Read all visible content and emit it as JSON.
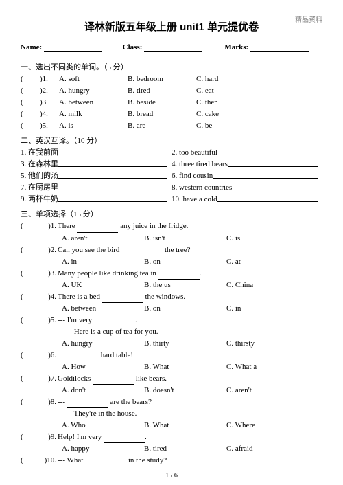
{
  "watermark": "精品资料",
  "title": "译林新版五年级上册 unit1 单元提优卷",
  "header": {
    "name": "Name:",
    "class": "Class:",
    "marks": "Marks:"
  },
  "sec1": {
    "title": "一、选出不同类的单词。（5 分）",
    "items": [
      {
        "n": ")1.",
        "a": "A. soft",
        "b": "B. bedroom",
        "c": "C. hard"
      },
      {
        "n": ")2.",
        "a": "A. hungry",
        "b": "B. tired",
        "c": "C. eat"
      },
      {
        "n": ")3.",
        "a": "A. between",
        "b": "B. beside",
        "c": "C. then"
      },
      {
        "n": ")4.",
        "a": "A. milk",
        "b": "B. bread",
        "c": "C. cake"
      },
      {
        "n": ")5.",
        "a": "A. is",
        "b": "B. are",
        "c": "C. be"
      }
    ]
  },
  "sec2": {
    "title": "二、英汉互译。（10 分）",
    "items": [
      {
        "n": "1.",
        "txt": "在我前面"
      },
      {
        "n": "2.",
        "txt": "too beautiful"
      },
      {
        "n": "3.",
        "txt": "在森林里"
      },
      {
        "n": "4.",
        "txt": "three tired bears"
      },
      {
        "n": "5.",
        "txt": "他们的汤"
      },
      {
        "n": "6.",
        "txt": "find cousin"
      },
      {
        "n": "7.",
        "txt": "在厨房里"
      },
      {
        "n": "8.",
        "txt": "western countries"
      },
      {
        "n": "9.",
        "txt": "两杯牛奶"
      },
      {
        "n": "10.",
        "txt": "have a cold"
      }
    ]
  },
  "sec3": {
    "title": "三、单项选择（15 分）",
    "q": [
      {
        "n": ")1.",
        "stem_a": "There ",
        "stem_b": " any juice in the fridge.",
        "a": "A. aren't",
        "b": "B. isn't",
        "c": "C. is"
      },
      {
        "n": ")2.",
        "stem_a": "Can you see the bird ",
        "stem_b": " the tree?",
        "a": "A. in",
        "b": "B. on",
        "c": "C. at"
      },
      {
        "n": ")3.",
        "stem_a": "Many people like drinking tea in ",
        "stem_b": ".",
        "a": "A. UK",
        "b": "B. the us",
        "c": "C. China"
      },
      {
        "n": ")4.",
        "stem_a": "There is a bed ",
        "stem_b": " the windows.",
        "a": "A. between",
        "b": "B. on",
        "c": "C. in"
      },
      {
        "n": ")5.",
        "stem_a": "--- I'm very ",
        "stem_b": ".",
        "sub": "--- Here is a cup of tea for you.",
        "a": "A. hungry",
        "b": "B. thirty",
        "c": "C. thirsty"
      },
      {
        "n": ")6.",
        "stem_a": "",
        "stem_b": " hard table!",
        "a": "A. How",
        "b": "B. What",
        "c": "C. What a"
      },
      {
        "n": ")7.",
        "stem_a": "Goldilocks ",
        "stem_b": " like bears.",
        "a": "A. don't",
        "b": "B. doesn't",
        "c": "C. aren't"
      },
      {
        "n": ")8.",
        "stem_a": "--- ",
        "stem_b": " are the bears?",
        "sub": "--- They're in the house.",
        "a": "A. Who",
        "b": "B. What",
        "c": "C. Where"
      },
      {
        "n": ")9.",
        "stem_a": "Help! I'm very ",
        "stem_b": ".",
        "a": "A. happy",
        "b": "B. tired",
        "c": "C. afraid"
      },
      {
        "n": ")10.",
        "stem_a": "--- What ",
        "stem_b": " in the study?",
        "a": "",
        "b": "",
        "c": ""
      }
    ]
  },
  "pager": "1 / 6"
}
